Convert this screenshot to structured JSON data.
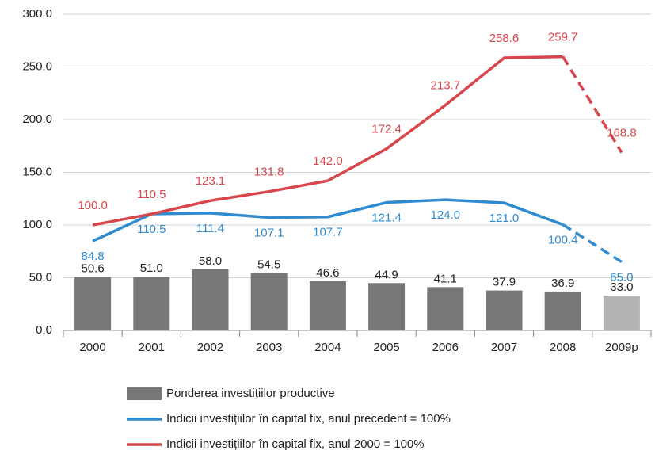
{
  "chart_data": {
    "type": "bar_line",
    "categories": [
      "2000",
      "2001",
      "2002",
      "2003",
      "2004",
      "2005",
      "2006",
      "2007",
      "2008",
      "2009p"
    ],
    "ylim": [
      0,
      300
    ],
    "yticks": [
      {
        "value": 0,
        "label": "0.0"
      },
      {
        "value": 50,
        "label": "50.0"
      },
      {
        "value": 100,
        "label": "100.0"
      },
      {
        "value": 150,
        "label": "150.0"
      },
      {
        "value": 200,
        "label": "200.0"
      },
      {
        "value": 250,
        "label": "250.0"
      },
      {
        "value": 300,
        "label": "300.0"
      }
    ],
    "grid": true,
    "dash_last_segment": true,
    "series": [
      {
        "name": "Ponderea investițiilor productive",
        "type": "bar",
        "color": "#777777",
        "colors": [
          "#777777",
          "#777777",
          "#777777",
          "#777777",
          "#777777",
          "#777777",
          "#777777",
          "#777777",
          "#777777",
          "#b4b4b4"
        ],
        "values": [
          50.6,
          51.0,
          58.0,
          54.5,
          46.6,
          44.9,
          41.1,
          37.9,
          36.9,
          33.0
        ],
        "value_labels": [
          "50.6",
          "51.0",
          "58.0",
          "54.5",
          "46.6",
          "44.9",
          "41.1",
          "37.9",
          "36.9",
          "33.0"
        ]
      },
      {
        "name": "Indicii investițiilor în capital fix, anul precedent = 100%",
        "type": "line",
        "color": "#2e8bd0",
        "values": [
          84.8,
          110.5,
          111.4,
          107.1,
          107.7,
          121.4,
          124.0,
          121.0,
          100.4,
          65.0
        ],
        "value_labels": [
          "84.8",
          "110.5",
          "111.4",
          "107.1",
          "107.7",
          "121.4",
          "124.0",
          "121.0",
          "100.4",
          "65.0"
        ]
      },
      {
        "name": "Indicii investițiilor în capital fix, anul 2000 = 100%",
        "type": "line",
        "color": "#d8464c",
        "values": [
          100.0,
          110.5,
          123.1,
          131.8,
          142.0,
          172.4,
          213.7,
          258.6,
          259.7,
          168.8
        ],
        "value_labels": [
          "100.0",
          "110.5",
          "123.1",
          "131.8",
          "142.0",
          "172.4",
          "213.7",
          "258.6",
          "259.7",
          "168.8"
        ]
      }
    ]
  }
}
